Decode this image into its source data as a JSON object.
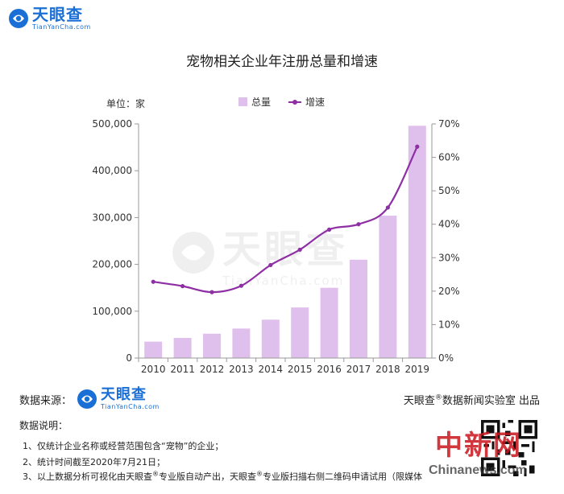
{
  "brand": {
    "name": "天眼查",
    "url": "TianYanCha.com"
  },
  "title": "宠物相关企业年注册总量和增速",
  "unit_label": "单位：家",
  "legend": {
    "bar": "总量",
    "line": "增速"
  },
  "chart_data": {
    "type": "bar",
    "title": "宠物相关企业年注册总量和增速",
    "categories": [
      "2010",
      "2011",
      "2012",
      "2013",
      "2014",
      "2015",
      "2016",
      "2017",
      "2018",
      "2019"
    ],
    "series": [
      {
        "name": "总量",
        "type": "bar",
        "axis": "left",
        "color": "#dfc0ec",
        "values": [
          35000,
          43000,
          52000,
          63000,
          82000,
          108000,
          150000,
          210000,
          304000,
          496000
        ]
      },
      {
        "name": "增速",
        "type": "line",
        "axis": "right",
        "color": "#8e2fa4",
        "values": [
          22.8,
          21.5,
          19.7,
          21.6,
          27.8,
          32.4,
          38.4,
          40.0,
          45.0,
          63.2
        ]
      }
    ],
    "y_left": {
      "min": 0,
      "max": 500000,
      "ticks": [
        "0",
        "100,000",
        "200,000",
        "300,000",
        "400,000",
        "500,000"
      ]
    },
    "y_right": {
      "min": 0,
      "max": 70,
      "ticks": [
        "0%",
        "10%",
        "20%",
        "30%",
        "40%",
        "50%",
        "60%",
        "70%"
      ]
    },
    "grid": false,
    "legend_position": "top-center"
  },
  "source": {
    "label": "数据来源："
  },
  "credit": {
    "pre": "天眼查",
    "mark": "®",
    "post": "数据新闻实验室 出品"
  },
  "notes": {
    "title": "数据说明：",
    "n1": "1、仅统计企业名称或经营范围包含“宠物”的企业；",
    "n2": "2、统计时间截至2020年7月21日；",
    "n3_a": "3、以上数据分析可视化由天眼查",
    "n3_mark": "®",
    "n3_b": "专业版自动产出，天眼查",
    "n3_c": "专业版扫描右侧二维码申请试用（限媒体"
  },
  "overlay": {
    "cn_mark": "中新网",
    "url": "Chinanews.com"
  }
}
